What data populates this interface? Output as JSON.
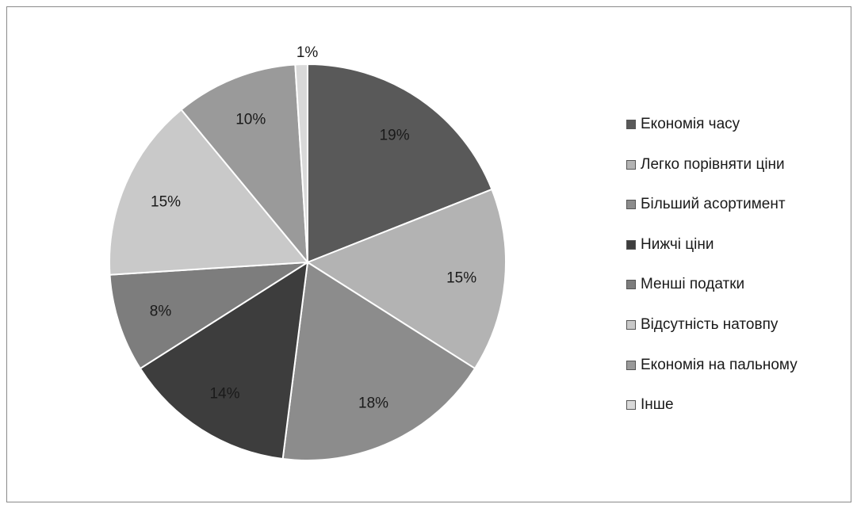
{
  "chart_data": {
    "type": "pie",
    "legend_position": "right",
    "categories": [
      "Економія часу",
      "Легко порівняти ціни",
      "Більший асортимент",
      "Нижчі ціни",
      "Менші податки",
      "Відсутність натовпу",
      "Економія на пальному",
      "Інше"
    ],
    "values": [
      19,
      15,
      18,
      14,
      8,
      15,
      10,
      1
    ],
    "labels": [
      "19%",
      "15%",
      "18%",
      "14%",
      "8%",
      "15%",
      "10%",
      "1%"
    ],
    "colors": [
      "#595959",
      "#b3b3b3",
      "#8c8c8c",
      "#3d3d3d",
      "#7d7d7d",
      "#c9c9c9",
      "#9a9a9a",
      "#d9d9d9"
    ]
  }
}
